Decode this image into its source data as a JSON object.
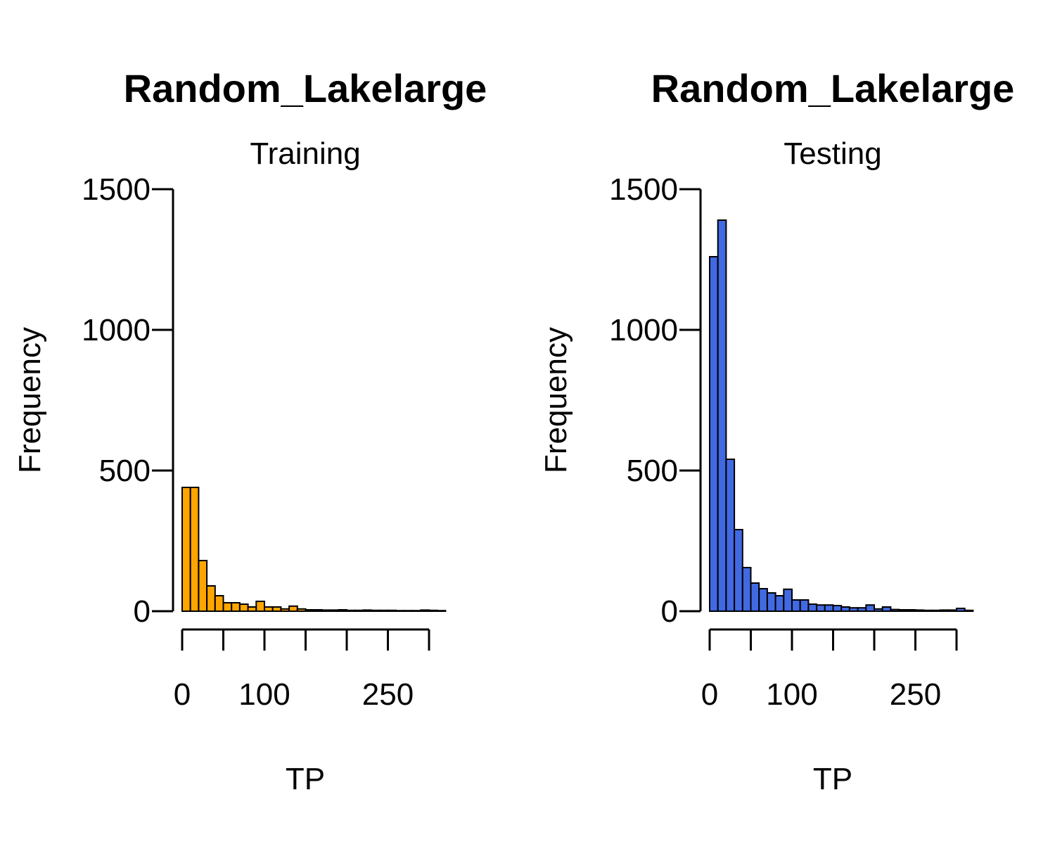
{
  "chart_data": [
    {
      "type": "bar",
      "title": "Random_Lakelarge",
      "subtitle": "Training",
      "xlabel": "TP",
      "ylabel": "Frequency",
      "fill_color": "#FFA500",
      "xlim": [
        0,
        300
      ],
      "ylim": [
        0,
        1500
      ],
      "x_ticks": [
        0,
        50,
        100,
        150,
        200,
        250,
        300
      ],
      "x_tick_labels": [
        "0",
        "",
        "100",
        "",
        "",
        "250",
        ""
      ],
      "y_ticks": [
        0,
        500,
        1000,
        1500
      ],
      "y_tick_labels": [
        "0",
        "500",
        "1000",
        "1500"
      ],
      "bin_width": 10,
      "bin_starts": [
        0,
        10,
        20,
        30,
        40,
        50,
        60,
        70,
        80,
        90,
        100,
        110,
        120,
        130,
        140,
        150,
        160,
        170,
        180,
        190,
        200,
        210,
        220,
        230,
        240,
        250,
        260,
        270,
        280,
        290,
        300,
        310
      ],
      "values": [
        440,
        440,
        180,
        90,
        55,
        30,
        30,
        25,
        15,
        35,
        15,
        15,
        8,
        18,
        8,
        5,
        5,
        4,
        4,
        5,
        3,
        3,
        4,
        3,
        3,
        3,
        2,
        2,
        2,
        4,
        3,
        2
      ]
    },
    {
      "type": "bar",
      "title": "Random_Lakelarge",
      "subtitle": "Testing",
      "xlabel": "TP",
      "ylabel": "Frequency",
      "fill_color": "#4169E1",
      "xlim": [
        0,
        300
      ],
      "ylim": [
        0,
        1500
      ],
      "x_ticks": [
        0,
        50,
        100,
        150,
        200,
        250,
        300
      ],
      "x_tick_labels": [
        "0",
        "",
        "100",
        "",
        "",
        "250",
        ""
      ],
      "y_ticks": [
        0,
        500,
        1000,
        1500
      ],
      "y_tick_labels": [
        "0",
        "500",
        "1000",
        "1500"
      ],
      "bin_width": 10,
      "bin_starts": [
        0,
        10,
        20,
        30,
        40,
        50,
        60,
        70,
        80,
        90,
        100,
        110,
        120,
        130,
        140,
        150,
        160,
        170,
        180,
        190,
        200,
        210,
        220,
        230,
        240,
        250,
        260,
        270,
        280,
        290,
        300,
        310
      ],
      "values": [
        1260,
        1390,
        540,
        290,
        155,
        100,
        80,
        65,
        55,
        78,
        40,
        40,
        25,
        22,
        22,
        20,
        15,
        12,
        12,
        22,
        8,
        15,
        6,
        5,
        5,
        4,
        3,
        3,
        4,
        4,
        10,
        3
      ]
    }
  ]
}
